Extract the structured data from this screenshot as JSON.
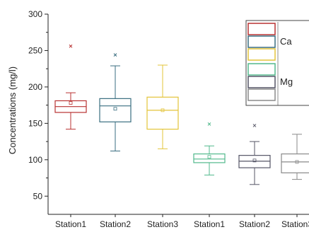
{
  "chart_data": {
    "type": "box",
    "title": "",
    "xlabel": "",
    "ylabel": "Concentrations (mg/l)",
    "ylim": [
      25,
      300
    ],
    "yticks": [
      50,
      100,
      150,
      200,
      250,
      300
    ],
    "categories": [
      "Station1",
      "Station2",
      "Station3",
      "Station1",
      "Station2",
      "Station3"
    ],
    "series": [
      {
        "name": "Ca",
        "color": "#b83232",
        "boxes": [
          {
            "category": "Station1",
            "min": 142,
            "q1": 165,
            "median": 173,
            "q3": 181,
            "max": 192,
            "mean": 178,
            "outliers": [
              256
            ]
          }
        ]
      },
      {
        "name": "",
        "color": "#3a6e80",
        "boxes": [
          {
            "category": "Station2",
            "min": 112,
            "q1": 152,
            "median": 174,
            "q3": 184,
            "max": 229,
            "mean": 170,
            "outliers": [
              244
            ]
          }
        ]
      },
      {
        "name": "",
        "color": "#e3c43a",
        "boxes": [
          {
            "category": "Station3",
            "min": 115,
            "q1": 142,
            "median": 168,
            "q3": 186,
            "max": 230,
            "mean": 168,
            "outliers": []
          }
        ]
      },
      {
        "name": "Mg",
        "color": "#52b98c",
        "boxes": [
          {
            "category": "Station1",
            "min": 79,
            "q1": 96,
            "median": 101,
            "q3": 108,
            "max": 119,
            "mean": 104,
            "outliers": [
              149
            ]
          }
        ]
      },
      {
        "name": "",
        "color": "#555566",
        "boxes": [
          {
            "category": "Station2",
            "min": 66,
            "q1": 89,
            "median": 98,
            "q3": 106,
            "max": 125,
            "mean": 99,
            "outliers": [
              147
            ]
          }
        ]
      },
      {
        "name": "",
        "color": "#8a8a8a",
        "boxes": [
          {
            "category": "Station3",
            "min": 73,
            "q1": 82,
            "median": 97,
            "q3": 108,
            "max": 135,
            "mean": 97,
            "outliers": []
          }
        ]
      }
    ],
    "legend": {
      "placement": "top-right",
      "groups": [
        {
          "label": "Ca",
          "colors": [
            "#b83232",
            "#3a6e80",
            "#e3c43a"
          ]
        },
        {
          "label": "Mg",
          "colors": [
            "#52b98c",
            "#555566",
            "#8a8a8a"
          ]
        }
      ]
    }
  }
}
